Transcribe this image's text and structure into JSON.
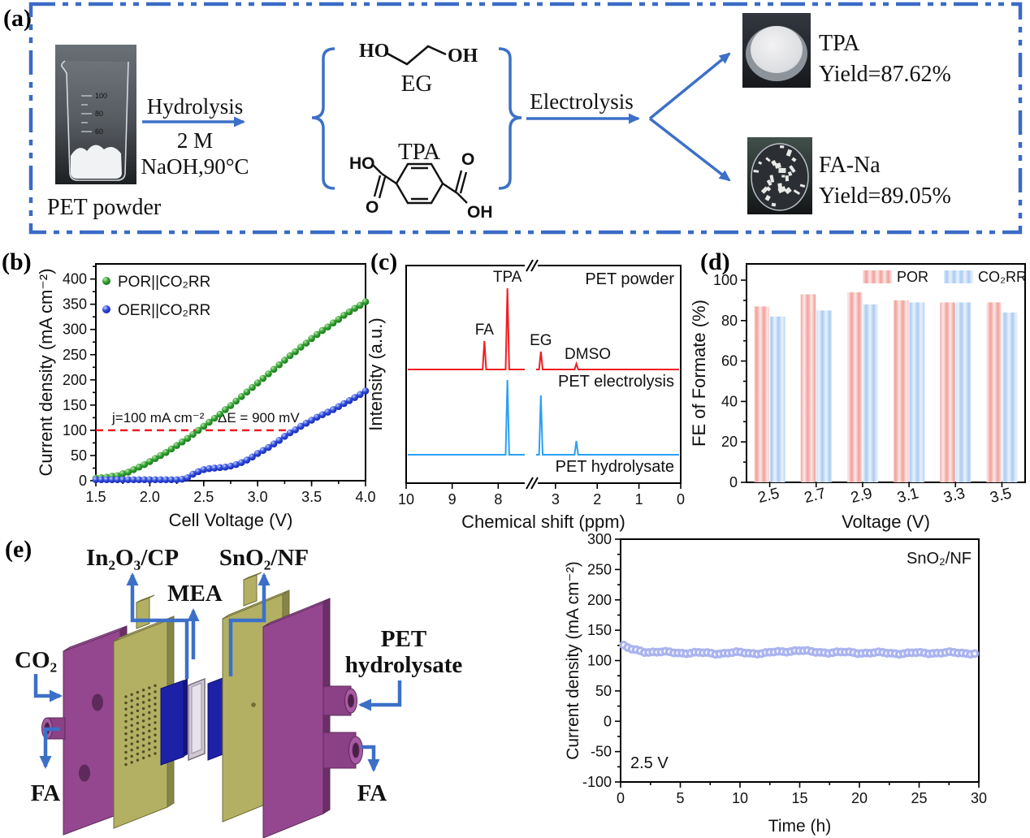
{
  "colors": {
    "frame_blue": "#3a6bc6",
    "arrow_blue": "#3c70c8",
    "green_point": "#1e8c1e",
    "blue_point": "#2433cb",
    "annot_red": "#ec1c24",
    "nmr_red": "#f01e23",
    "nmr_blue": "#2aa0f2",
    "bar_pink": "#f2a09b",
    "bar_pink_pale": "#fce9e8",
    "bar_blue": "#aacbf2",
    "bar_blue_pale": "#ebf3fc",
    "stability_point": "#a9b2ee",
    "purple_plate": "#94478f",
    "olive_plate": "#b3b063",
    "gasket_blue": "#1d21a8"
  },
  "panel_a": {
    "tag": "(a)",
    "pet_powder_label": "PET powder",
    "beaker_gradations": [
      "100",
      "80",
      "60"
    ],
    "hydrolysis_label": "Hydrolysis",
    "hydrolysis_cond1": "2 M",
    "hydrolysis_cond2": "NaOH,90°C",
    "eg_label": "EG",
    "tpa_label": "TPA",
    "electrolysis_label": "Electrolysis",
    "atoms": {
      "ho": "HO",
      "oh": "OH",
      "o1": "O",
      "o2": "O",
      "ho2": "HO",
      "oh2": "OH"
    },
    "tpa_product_name": "TPA",
    "tpa_product_yield": "Yield=87.62%",
    "fana_product_name": "FA-Na",
    "fana_product_yield": "Yield=89.05%"
  },
  "panel_b": {
    "tag": "(b)"
  },
  "panel_c": {
    "tag": "(c)"
  },
  "panel_d": {
    "tag": "(d)"
  },
  "panel_e": {
    "tag": "(e)",
    "label_cathode": "In₂O₃/CP",
    "label_mea": "MEA",
    "label_anode": "SnO₂/NF",
    "label_co2": "CO₂",
    "label_fa_left": "FA",
    "label_fa_right": "FA",
    "label_pet1": "PET",
    "label_pet2": "hydrolysate"
  },
  "chart_data": [
    {
      "id": "b",
      "type": "scatter",
      "xlabel": "Cell Voltage (V)",
      "ylabel": "Current density (mA cm⁻²)",
      "xlim": [
        1.5,
        4.0
      ],
      "ylim": [
        0,
        430
      ],
      "xticks": [
        "1.5",
        "2.0",
        "2.5",
        "3.0",
        "3.5",
        "4.0"
      ],
      "yticks": [
        0,
        50,
        100,
        150,
        200,
        250,
        300,
        350,
        400
      ],
      "x_start": 1.5,
      "x_step": 0.05,
      "legend_position": "top-left",
      "series": [
        {
          "name": "POR||CO₂RR",
          "color": "green",
          "values": [
            5,
            6,
            7,
            9,
            10,
            14,
            17,
            22,
            27,
            32,
            38,
            44,
            50,
            56,
            63,
            70,
            77,
            84,
            92,
            100,
            108,
            116,
            124,
            132,
            141,
            149,
            158,
            167,
            176,
            185,
            194,
            203,
            212,
            221,
            230,
            239,
            248,
            256,
            265,
            273,
            282,
            290,
            298,
            305,
            313,
            320,
            328,
            335,
            342,
            348,
            355
          ]
        },
        {
          "name": "OER||CO₂RR",
          "color": "blue",
          "values": [
            2,
            2,
            2,
            2,
            2,
            2,
            2,
            2,
            2,
            2,
            2,
            2,
            2,
            2,
            2,
            2,
            3,
            6,
            13,
            18,
            22,
            24,
            25,
            26,
            27,
            29,
            32,
            36,
            41,
            47,
            54,
            60,
            66,
            73,
            80,
            88,
            95,
            101,
            108,
            114,
            120,
            126,
            131,
            136,
            141,
            147,
            153,
            159,
            165,
            171,
            178
          ]
        }
      ],
      "ref_line": {
        "y": 100,
        "x_from": 1.5,
        "x_to": 3.27,
        "label_left": "j=100 mA cm⁻²",
        "label_right": "ΔE = 900 mV"
      }
    },
    {
      "id": "c",
      "type": "line",
      "xlabel": "Chemical shift (ppm)",
      "ylabel": "Intensity (a.u.)",
      "xticks_left": [
        10,
        9,
        8
      ],
      "xticks_right": [
        3,
        2,
        1,
        0
      ],
      "axis_break_between": [
        "8",
        "3"
      ],
      "corner_label": "PET powder",
      "traces": [
        {
          "name": "PET electrolysis",
          "color": "#f01e23",
          "peaks": [
            {
              "ppm": 8.3,
              "h": 35,
              "label": "FA",
              "label_color": "#f01e23"
            },
            {
              "ppm": 7.8,
              "h": 100,
              "label": "TPA",
              "label_color": "#f01e23"
            },
            {
              "ppm": 3.35,
              "h": 22,
              "label": "EG",
              "label_color": "#1a1a1a"
            },
            {
              "ppm": 2.5,
              "h": 7,
              "label": "DMSO",
              "label_color": "#1a1a1a"
            }
          ]
        },
        {
          "name": "PET hydrolysate",
          "color": "#2aa0f2",
          "peaks": [
            {
              "ppm": 7.8,
              "h": 92
            },
            {
              "ppm": 3.35,
              "h": 73
            },
            {
              "ppm": 2.5,
              "h": 17
            }
          ]
        }
      ]
    },
    {
      "id": "d",
      "type": "bar",
      "xlabel": "Voltage (V)",
      "ylabel": "FE of Formate (%)",
      "categories": [
        "2.5",
        "2.7",
        "2.9",
        "3.1",
        "3.3",
        "3.5"
      ],
      "yticks": [
        0,
        20,
        40,
        60,
        80,
        100
      ],
      "series": [
        {
          "name": "POR",
          "color": "pink",
          "values": [
            87,
            93,
            94,
            90,
            89,
            89
          ]
        },
        {
          "name": "CO₂RR",
          "color": "lightblue",
          "values": [
            82,
            85,
            88,
            89,
            89,
            84
          ]
        }
      ]
    },
    {
      "id": "e",
      "type": "scatter",
      "xlabel": "Time (h)",
      "ylabel": "Current density (mA cm⁻²)",
      "xlim": [
        0,
        30
      ],
      "ylim": [
        -100,
        300
      ],
      "xticks": [
        0,
        5,
        10,
        15,
        20,
        25,
        30
      ],
      "yticks": [
        -100,
        -50,
        0,
        50,
        100,
        150,
        200,
        250,
        300
      ],
      "corner_label": "SnO₂/NF",
      "voltage_label": "2.5 V",
      "series": [
        {
          "name": "SnO₂/NF stability",
          "color": "#a9b2ee",
          "point_spacing_h": 0.35,
          "anchor_points": [
            [
              0.2,
              125
            ],
            [
              0.5,
              121
            ],
            [
              1,
              118
            ],
            [
              2,
              115
            ],
            [
              3,
              114
            ],
            [
              5,
              113
            ],
            [
              8,
              112
            ],
            [
              10,
              113
            ],
            [
              12,
              112
            ],
            [
              14.8,
              117
            ],
            [
              16,
              114
            ],
            [
              20,
              113
            ],
            [
              24,
              112
            ],
            [
              27,
              113
            ],
            [
              30,
              112
            ]
          ]
        }
      ]
    }
  ]
}
